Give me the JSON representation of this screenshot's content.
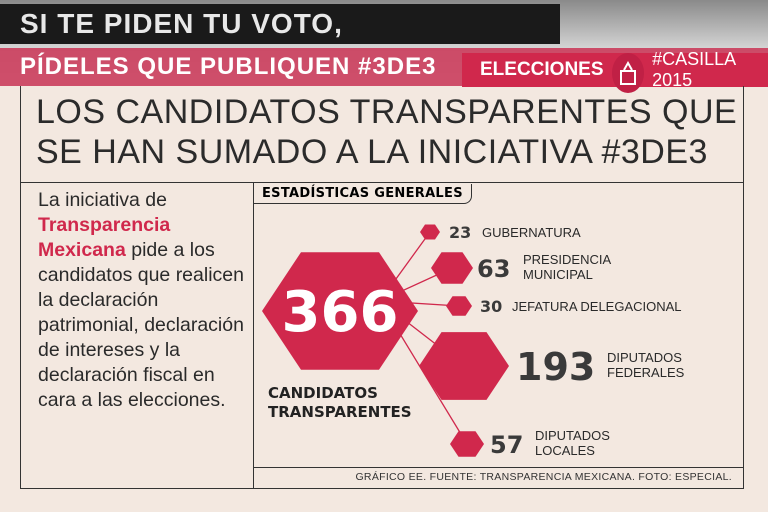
{
  "banner": {
    "line1": "SI TE PIDEN TU VOTO,",
    "line2": "PÍDELES QUE PUBLIQUEN #3DE3"
  },
  "tag": {
    "section": "ELECCIONES",
    "subsection": "#CASILLA 2015",
    "icon": "ballot-box-icon"
  },
  "title": {
    "line1": "LOS CANDIDATOS TRANSPARENTES QUE",
    "line2": "SE HAN SUMADO A LA INICIATIVA #3DE3"
  },
  "intro": {
    "pre": "La iniciativa de ",
    "highlight": "Transparencia Mexicana",
    "post": " pide a los candidatos que realicen la declaración patrimonial, declaración de intereses y la declaración fiscal en cara a las elecciones."
  },
  "stats": {
    "heading": "ESTADÍSTICAS GENERALES",
    "total": {
      "value": "366",
      "label1": "CANDIDATOS",
      "label2": "TRANSPARENTES"
    },
    "items": [
      {
        "value": "23",
        "label1": "GUBERNATURA",
        "label2": ""
      },
      {
        "value": "63",
        "label1": "PRESIDENCIA",
        "label2": "MUNICIPAL"
      },
      {
        "value": "30",
        "label1": "JEFATURA DELEGACIONAL",
        "label2": ""
      },
      {
        "value": "193",
        "label1": "DIPUTADOS",
        "label2": "FEDERALES"
      },
      {
        "value": "57",
        "label1": "DIPUTADOS",
        "label2": "LOCALES"
      }
    ]
  },
  "footer": "GRÁFICO EE. FUENTE: TRANSPARENCIA MEXICANA. FOTO: ESPECIAL.",
  "colors": {
    "accent": "#d0284c",
    "background": "#f3e8e0",
    "text": "#2a2a2a"
  }
}
